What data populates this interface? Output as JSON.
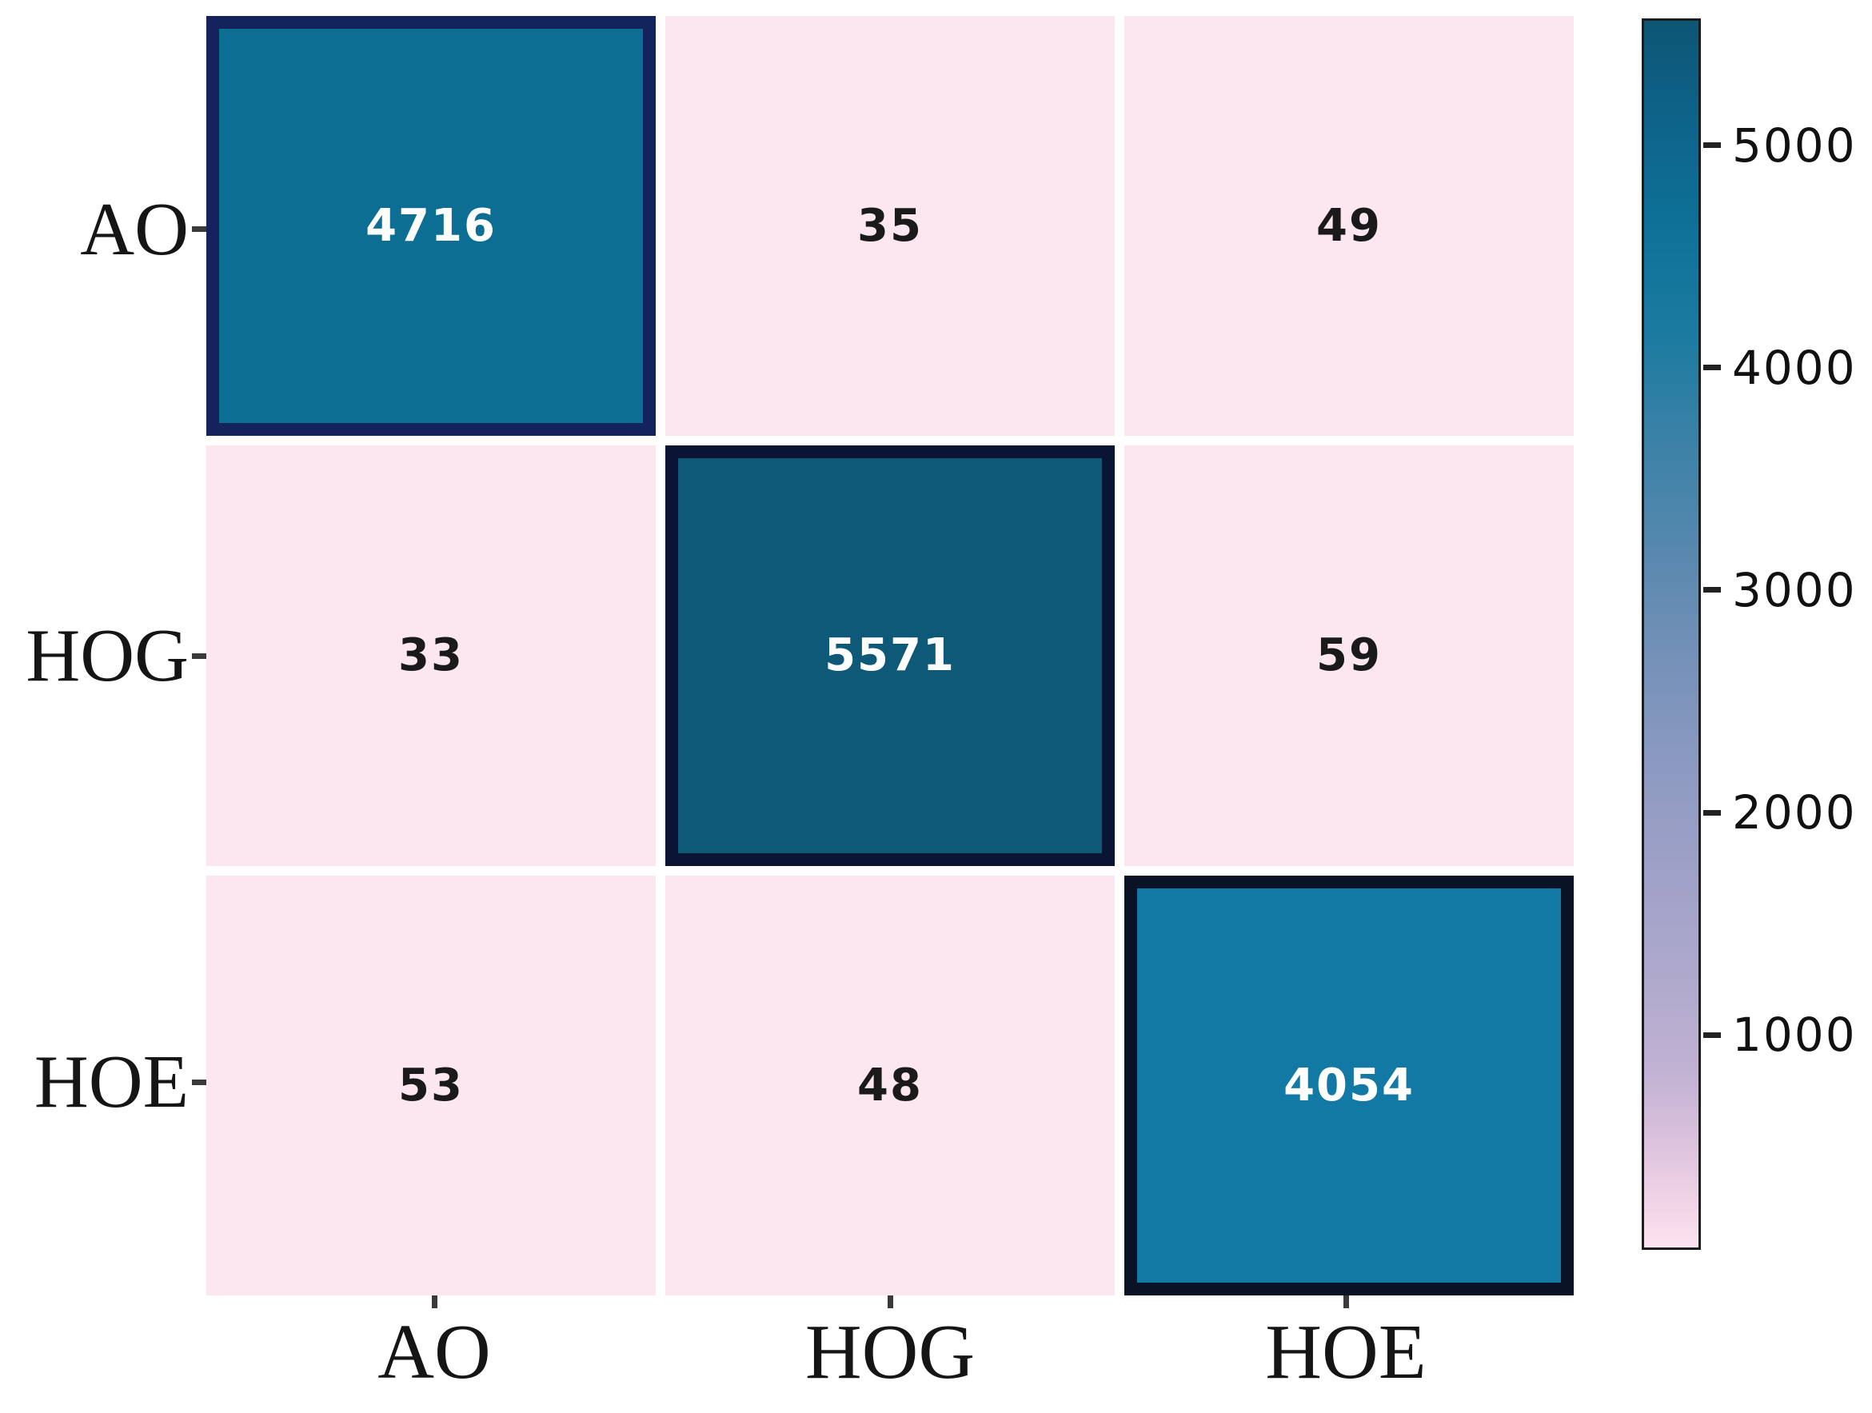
{
  "chart_data": {
    "type": "heatmap",
    "title": "",
    "x_tick_labels": [
      "AO",
      "HOG",
      "HOE"
    ],
    "y_tick_labels": [
      "AO",
      "HOG",
      "HOE"
    ],
    "matrix": [
      [
        4716,
        35,
        49
      ],
      [
        33,
        5571,
        59
      ],
      [
        53,
        48,
        4054
      ]
    ],
    "colorbar": {
      "vmin": 33,
      "vmax": 5571,
      "ticks": [
        5000,
        4000,
        3000,
        2000,
        1000
      ],
      "position": "right"
    },
    "legend": "none",
    "grid": "white-gaps-between-cells"
  },
  "style": {
    "background": "#ffffff",
    "offdiag_color": "#fce7f1",
    "cell_colors": [
      [
        "#0d6e94",
        "#fce7f1",
        "#fce7f1"
      ],
      [
        "#fce7f1",
        "#0e5977",
        "#fce7f1"
      ],
      [
        "#fce7f1",
        "#fce7f1",
        "#1179a3"
      ]
    ],
    "diag_border_colors": [
      "#14235c",
      "#0a1433",
      "#0a1226"
    ],
    "diag_text_color": "#ffffff",
    "offdiag_text_color": "#1a1a1a",
    "axis_label_color": "#151515",
    "tick_color": "#3a3a3a",
    "colorbar_gradient": [
      [
        0,
        "#0d5674"
      ],
      [
        8,
        "#0d638a"
      ],
      [
        18,
        "#0f7399"
      ],
      [
        26,
        "#1d7ba1"
      ],
      [
        34,
        "#3a81a7"
      ],
      [
        43,
        "#5788ae"
      ],
      [
        52,
        "#7591b8"
      ],
      [
        62,
        "#8f9bc2"
      ],
      [
        71,
        "#a2a2c9"
      ],
      [
        79,
        "#b1aacd"
      ],
      [
        86,
        "#c2b2d3"
      ],
      [
        92,
        "#dec4de"
      ],
      [
        97,
        "#f3d6e8"
      ],
      [
        100,
        "#fce3f0"
      ]
    ]
  }
}
